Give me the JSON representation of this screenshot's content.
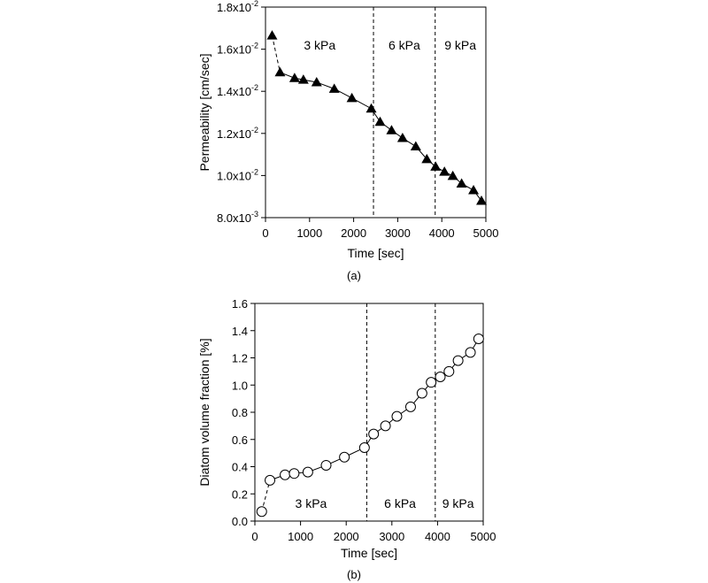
{
  "chart_data": [
    {
      "id": "a",
      "type": "line",
      "caption": "(a)",
      "xlabel": "Time [sec]",
      "ylabel": "Permeability  [cm/sec]",
      "xlim": [
        0,
        5000
      ],
      "ylim": [
        0.008,
        0.018
      ],
      "xticks": [
        0,
        1000,
        2000,
        3000,
        4000,
        5000
      ],
      "xtick_labels": [
        "0",
        "1000",
        "2000",
        "3000",
        "4000",
        "5000"
      ],
      "yticks": [
        0.008,
        0.01,
        0.012,
        0.014,
        0.016,
        0.018
      ],
      "ytick_labels": [
        {
          "mantissa": "8.0x10",
          "exp": "-3"
        },
        {
          "mantissa": "1.0x10",
          "exp": "-2"
        },
        {
          "mantissa": "1.2x10",
          "exp": "-2"
        },
        {
          "mantissa": "1.4x10",
          "exp": "-2"
        },
        {
          "mantissa": "1.6x10",
          "exp": "-2"
        },
        {
          "mantissa": "1.8x10",
          "exp": "-2"
        }
      ],
      "marker": "filled-triangle",
      "x": [
        150,
        330,
        660,
        860,
        1160,
        1560,
        1960,
        2400,
        2600,
        2860,
        3110,
        3410,
        3660,
        3860,
        4060,
        4250,
        4450,
        4720,
        4900
      ],
      "y": [
        0.01665,
        0.0149,
        0.01463,
        0.01455,
        0.01443,
        0.01412,
        0.01368,
        0.01318,
        0.01255,
        0.01215,
        0.01178,
        0.01138,
        0.01078,
        0.01042,
        0.01018,
        0.00998,
        0.00962,
        0.0093,
        0.0088
      ],
      "dashed_segment_points": 2,
      "vlines": [
        2450,
        3850
      ],
      "regions": [
        {
          "label": "3 kPa",
          "x": 1230
        },
        {
          "label": "6 kPa",
          "x": 3150
        },
        {
          "label": "9 kPa",
          "x": 4420
        }
      ],
      "region_label_y": 0.0162,
      "grid": false,
      "legend": "none"
    },
    {
      "id": "b",
      "type": "line",
      "caption": "(b)",
      "xlabel": "Time [sec]",
      "ylabel": "Diatom volume fraction [%]",
      "xlim": [
        0,
        5000
      ],
      "ylim": [
        0,
        1.6
      ],
      "xticks": [
        0,
        1000,
        2000,
        3000,
        4000,
        5000
      ],
      "xtick_labels": [
        "0",
        "1000",
        "2000",
        "3000",
        "4000",
        "5000"
      ],
      "yticks": [
        0,
        0.2,
        0.4,
        0.6,
        0.8,
        1.0,
        1.2,
        1.4,
        1.6
      ],
      "ytick_labels": [
        {
          "mantissa": "0.0",
          "exp": ""
        },
        {
          "mantissa": "0.2",
          "exp": ""
        },
        {
          "mantissa": "0.4",
          "exp": ""
        },
        {
          "mantissa": "0.6",
          "exp": ""
        },
        {
          "mantissa": "0.8",
          "exp": ""
        },
        {
          "mantissa": "1.0",
          "exp": ""
        },
        {
          "mantissa": "1.2",
          "exp": ""
        },
        {
          "mantissa": "1.4",
          "exp": ""
        },
        {
          "mantissa": "1.6",
          "exp": ""
        }
      ],
      "marker": "open-circle",
      "x": [
        150,
        330,
        660,
        860,
        1160,
        1560,
        1960,
        2400,
        2600,
        2860,
        3110,
        3410,
        3660,
        3860,
        4060,
        4250,
        4450,
        4720,
        4900
      ],
      "y": [
        0.07,
        0.3,
        0.34,
        0.35,
        0.36,
        0.41,
        0.47,
        0.54,
        0.64,
        0.7,
        0.77,
        0.84,
        0.94,
        1.02,
        1.06,
        1.1,
        1.18,
        1.24,
        1.34
      ],
      "dashed_segment_points": 2,
      "vlines": [
        2450,
        3950
      ],
      "regions": [
        {
          "label": "3 kPa",
          "x": 1230
        },
        {
          "label": "6 kPa",
          "x": 3180
        },
        {
          "label": "9 kPa",
          "x": 4450
        }
      ],
      "region_label_y": 0.13,
      "grid": false,
      "legend": "none"
    }
  ]
}
